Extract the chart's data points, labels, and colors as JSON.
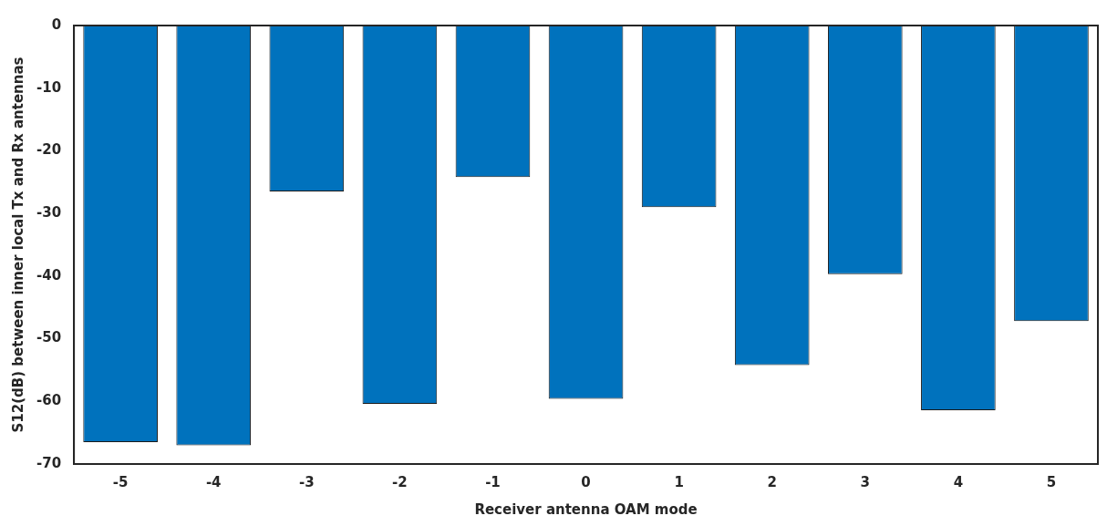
{
  "chart_data": {
    "type": "bar",
    "xlabel": "Receiver antenna OAM mode",
    "ylabel": "S12(dB) between inner local Tx and Rx antennas",
    "categories": [
      "-5",
      "-4",
      "-3",
      "-2",
      "-1",
      "0",
      "1",
      "2",
      "3",
      "4",
      "5"
    ],
    "values": [
      -66.5,
      -67,
      -26.5,
      -60.4,
      -24.2,
      -59.6,
      -29,
      -54.2,
      -39.7,
      -61.4,
      -47.2
    ],
    "color": "#0072bd",
    "ylim": [
      -70,
      0
    ],
    "yticks": [
      -70,
      -60,
      -50,
      -40,
      -30,
      -20,
      -10,
      0
    ],
    "grid": false,
    "legend": false
  }
}
